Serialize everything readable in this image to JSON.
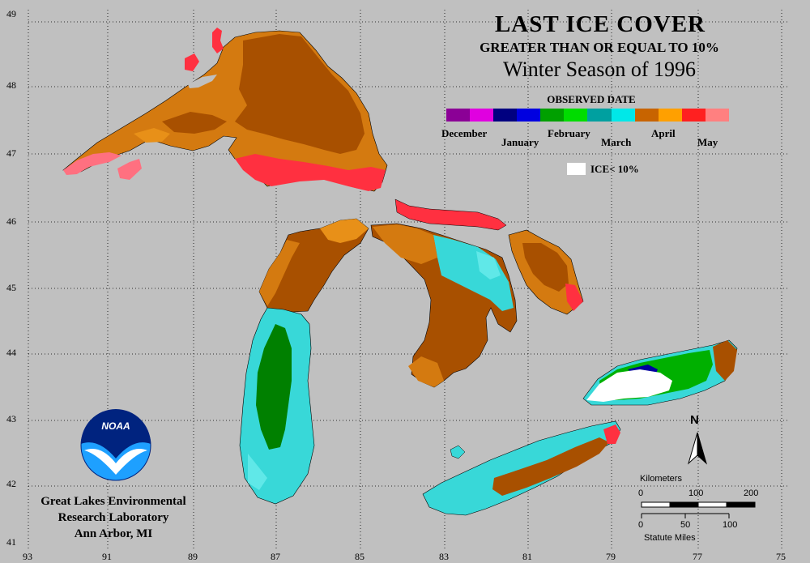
{
  "title": {
    "main": "LAST ICE COVER",
    "sub": "GREATER THAN OR EQUAL TO 10%",
    "season": "Winter Season of 1996"
  },
  "legend": {
    "title": "OBSERVED DATE",
    "months": [
      "December",
      "January",
      "February",
      "March",
      "April",
      "May"
    ],
    "colors": [
      "#8b0096",
      "#e000e0",
      "#000080",
      "#0000e0",
      "#00a000",
      "#00dc00",
      "#00a0a0",
      "#00e8e8",
      "#c86400",
      "#ffa000",
      "#ff2020",
      "#ff8080"
    ],
    "ice_label": "ICE< 10%"
  },
  "axes": {
    "latitudes": [
      "49",
      "48",
      "47",
      "46",
      "45",
      "44",
      "43",
      "42",
      "41"
    ],
    "longitudes": [
      "93",
      "91",
      "89",
      "87",
      "85",
      "83",
      "81",
      "79",
      "77",
      "75"
    ]
  },
  "org": {
    "line1": "Great Lakes Environmental",
    "line2": "Research Laboratory",
    "line3": "Ann Arbor, MI",
    "logo_text": "NOAA"
  },
  "scale": {
    "km_title": "Kilometers",
    "km_ticks": [
      "0",
      "100",
      "200"
    ],
    "mi_title": "Statute Miles",
    "mi_ticks": [
      "0",
      "50",
      "100"
    ]
  },
  "north": "N",
  "colors": {
    "background": "#c0c0c0",
    "april_dark": "#a85000",
    "april": "#d47a10",
    "april_light": "#e89018",
    "may": "#ff3040",
    "may_light": "#ff7080",
    "march": "#38d8d8",
    "march_light": "#60e8e8",
    "february": "#00b000",
    "february_dark": "#008000",
    "january": "#0000a0",
    "noaa_blue": "#00237f",
    "noaa_light": "#1ea0ff"
  }
}
